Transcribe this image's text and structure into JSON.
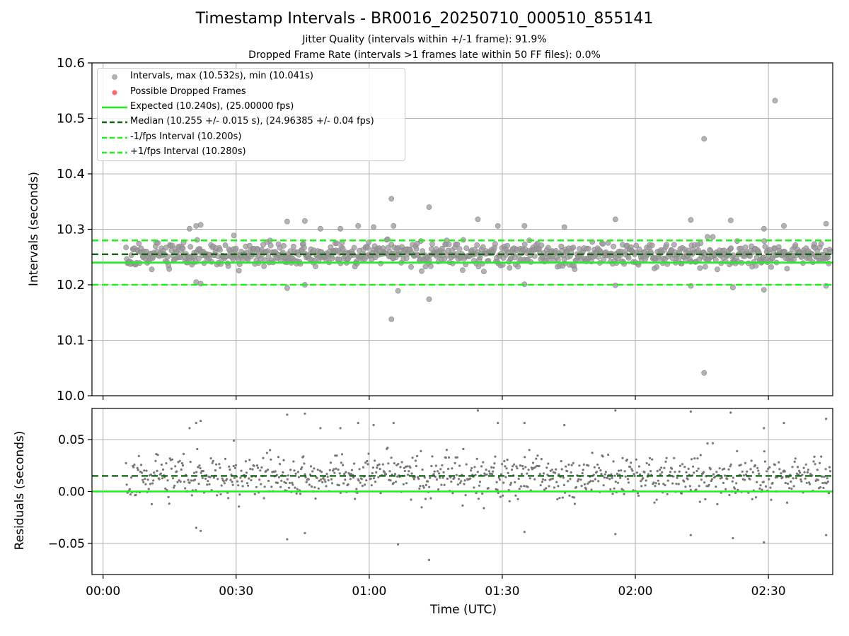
{
  "chart_data": [
    {
      "type": "scatter",
      "title": "Timestamp Intervals - BR0016_20250710_000510_855141",
      "subtitle_1": "Jitter Quality (intervals within +/-1 frame): 91.9%",
      "subtitle_2": "Dropped Frame Rate (intervals >1 frames late within 50 FF files): 0.0%",
      "ylabel": "Intervals (seconds)",
      "ylim": [
        10.0,
        10.6
      ],
      "yticks": [
        "10.0",
        "10.1",
        "10.2",
        "10.3",
        "10.4",
        "10.5",
        "10.6"
      ],
      "ytick_values": [
        10.0,
        10.1,
        10.2,
        10.3,
        10.4,
        10.5,
        10.6
      ],
      "xlim_minutes": [
        -2.5,
        164.5
      ],
      "grid": true,
      "legend_position": "top-left",
      "legend": [
        {
          "label": "Intervals, max (10.532s), min (10.041s)",
          "marker": "circle",
          "color": "#999999"
        },
        {
          "label": "Possible Dropped Frames",
          "marker": "circle",
          "color": "#ff6666"
        },
        {
          "label": "Expected (10.240s), (25.00000 fps)",
          "line": "solid",
          "color": "#22ee22"
        },
        {
          "label": "Median (10.255 +/- 0.015 s), (24.96385 +/- 0.04 fps)",
          "line": "dashed",
          "color": "#116611"
        },
        {
          "label": "-1/fps Interval (10.200s)",
          "line": "dashed",
          "color": "#22ee22"
        },
        {
          "label": "+1/fps Interval (10.280s)",
          "line": "dashed",
          "color": "#22ee22"
        }
      ],
      "reference_lines": {
        "expected": 10.24,
        "median": 10.255,
        "minus_1_fps": 10.2,
        "plus_1_fps": 10.28
      },
      "series": [
        {
          "name": "Intervals, max (10.532s), min (10.041s)",
          "start_minute": 5.17,
          "step_seconds": 10.255,
          "count": 930,
          "stats": {
            "max": 10.532,
            "min": 10.041,
            "median": 10.255
          },
          "outliers": [
            {
              "x": 19.5,
              "y": 10.301
            },
            {
              "x": 21.0,
              "y": 10.306
            },
            {
              "x": 22.0,
              "y": 10.308
            },
            {
              "x": 21.0,
              "y": 10.205
            },
            {
              "x": 22.0,
              "y": 10.202
            },
            {
              "x": 29.5,
              "y": 10.289
            },
            {
              "x": 41.5,
              "y": 10.314
            },
            {
              "x": 41.5,
              "y": 10.194
            },
            {
              "x": 45.5,
              "y": 10.315
            },
            {
              "x": 45.5,
              "y": 10.2
            },
            {
              "x": 49.0,
              "y": 10.301
            },
            {
              "x": 53.5,
              "y": 10.301
            },
            {
              "x": 57.5,
              "y": 10.306
            },
            {
              "x": 61.0,
              "y": 10.304
            },
            {
              "x": 65.0,
              "y": 10.355
            },
            {
              "x": 65.5,
              "y": 10.306
            },
            {
              "x": 65.0,
              "y": 10.138
            },
            {
              "x": 66.5,
              "y": 10.189
            },
            {
              "x": 73.5,
              "y": 10.34
            },
            {
              "x": 73.5,
              "y": 10.174
            },
            {
              "x": 84.5,
              "y": 10.318
            },
            {
              "x": 89.0,
              "y": 10.306
            },
            {
              "x": 95.0,
              "y": 10.306
            },
            {
              "x": 95.0,
              "y": 10.201
            },
            {
              "x": 104.0,
              "y": 10.304
            },
            {
              "x": 115.5,
              "y": 10.318
            },
            {
              "x": 115.5,
              "y": 10.199
            },
            {
              "x": 132.5,
              "y": 10.317
            },
            {
              "x": 132.5,
              "y": 10.198
            },
            {
              "x": 135.5,
              "y": 10.463
            },
            {
              "x": 135.5,
              "y": 10.041
            },
            {
              "x": 141.5,
              "y": 10.316
            },
            {
              "x": 142.0,
              "y": 10.195
            },
            {
              "x": 149.0,
              "y": 10.301
            },
            {
              "x": 149.0,
              "y": 10.191
            },
            {
              "x": 151.5,
              "y": 10.532
            },
            {
              "x": 153.5,
              "y": 10.306
            },
            {
              "x": 163.0,
              "y": 10.31
            },
            {
              "x": 163.0,
              "y": 10.198
            }
          ]
        }
      ]
    },
    {
      "type": "scatter",
      "ylabel": "Residuals (seconds)",
      "xlabel": "Time (UTC)",
      "ylim": [
        -0.08,
        0.08
      ],
      "yticks": [
        "−0.05",
        "0.00",
        "0.05"
      ],
      "ytick_values": [
        -0.05,
        0.0,
        0.05
      ],
      "xticks": [
        "00:00",
        "00:30",
        "01:00",
        "01:30",
        "02:00",
        "02:30"
      ],
      "xtick_minutes": [
        0,
        30,
        60,
        90,
        120,
        150
      ],
      "xlim_minutes": [
        -2.5,
        164.5
      ],
      "grid": true,
      "reference_lines": {
        "zero": 0.0,
        "median_offset": 0.015
      },
      "series": [
        {
          "name": "Residuals",
          "derived_from": "intervals minus expected (10.240s)"
        }
      ]
    }
  ],
  "colors": {
    "points": "#999999",
    "points_edge": "#888888",
    "residual_points": "#777777",
    "expected": "#22ee22",
    "median": "#116611",
    "grid": "#b0b0b0",
    "dropped": "#ff6666"
  }
}
